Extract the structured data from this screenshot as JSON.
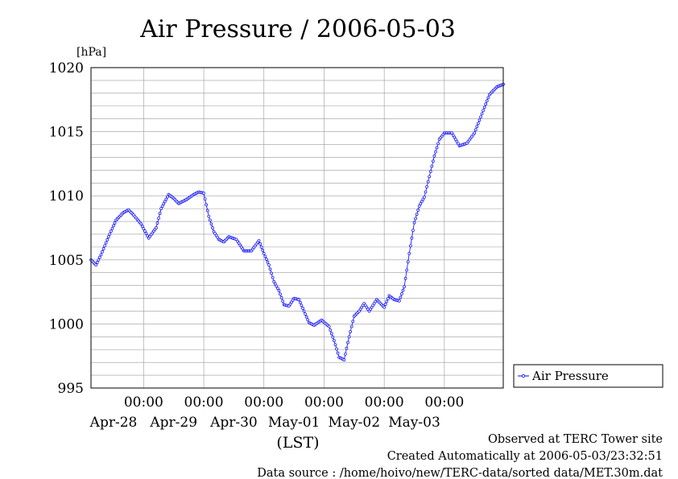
{
  "chart_data": {
    "type": "line",
    "title": "Air Pressure / 2006-05-03",
    "ylabel": "[hPa]",
    "xlabel": "(LST)",
    "ylim": [
      995,
      1020
    ],
    "yticks": [
      995,
      1000,
      1005,
      1010,
      1015,
      1020
    ],
    "xlim": [
      "2006-04-27 03:00",
      "2006-05-03 23:30"
    ],
    "xticks": [
      {
        "x": "2006-04-28 00:00",
        "time": "00:00",
        "date": "Apr-28"
      },
      {
        "x": "2006-04-29 00:00",
        "time": "00:00",
        "date": "Apr-29"
      },
      {
        "x": "2006-04-30 00:00",
        "time": "00:00",
        "date": "Apr-30"
      },
      {
        "x": "2006-05-01 00:00",
        "time": "00:00",
        "date": "May-01"
      },
      {
        "x": "2006-05-02 00:00",
        "time": "00:00",
        "date": "May-02"
      },
      {
        "x": "2006-05-03 00:00",
        "time": "00:00",
        "date": "May-03"
      }
    ],
    "grid": true,
    "legend_position": "right",
    "series": [
      {
        "name": "Air Pressure",
        "color": "#0000ff",
        "x": [
          "2006-04-27 03:00",
          "2006-04-27 05:00",
          "2006-04-27 07:00",
          "2006-04-27 10:00",
          "2006-04-27 13:00",
          "2006-04-27 16:00",
          "2006-04-27 18:00",
          "2006-04-27 20:00",
          "2006-04-27 23:00",
          "2006-04-28 02:00",
          "2006-04-28 05:00",
          "2006-04-28 07:00",
          "2006-04-28 10:00",
          "2006-04-28 12:00",
          "2006-04-28 14:00",
          "2006-04-28 17:00",
          "2006-04-28 20:00",
          "2006-04-28 22:00",
          "2006-04-29 00:00",
          "2006-04-29 02:00",
          "2006-04-29 04:00",
          "2006-04-29 06:00",
          "2006-04-29 08:00",
          "2006-04-29 10:00",
          "2006-04-29 13:00",
          "2006-04-29 16:00",
          "2006-04-29 19:00",
          "2006-04-29 22:00",
          "2006-04-30 00:00",
          "2006-04-30 02:00",
          "2006-04-30 04:00",
          "2006-04-30 06:00",
          "2006-04-30 08:00",
          "2006-04-30 10:00",
          "2006-04-30 12:00",
          "2006-04-30 14:00",
          "2006-04-30 16:00",
          "2006-04-30 18:00",
          "2006-04-30 20:00",
          "2006-04-30 23:00",
          "2006-05-01 02:00",
          "2006-05-01 04:00",
          "2006-05-01 06:00",
          "2006-05-01 08:00",
          "2006-05-01 10:00",
          "2006-05-01 12:00",
          "2006-05-01 14:00",
          "2006-05-01 16:00",
          "2006-05-01 18:00",
          "2006-05-01 21:00",
          "2006-05-02 00:00",
          "2006-05-02 02:00",
          "2006-05-02 04:00",
          "2006-05-02 06:00",
          "2006-05-02 08:00",
          "2006-05-02 10:00",
          "2006-05-02 12:00",
          "2006-05-02 14:00",
          "2006-05-02 16:00",
          "2006-05-02 18:00",
          "2006-05-02 20:00",
          "2006-05-02 22:00",
          "2006-05-03 00:00",
          "2006-05-03 03:00",
          "2006-05-03 06:00",
          "2006-05-03 09:00",
          "2006-05-03 12:00",
          "2006-05-03 15:00",
          "2006-05-03 18:00",
          "2006-05-03 21:00",
          "2006-05-03 23:30"
        ],
        "values": [
          1005.0,
          1004.6,
          1005.4,
          1006.8,
          1008.1,
          1008.7,
          1008.9,
          1008.5,
          1007.8,
          1006.7,
          1007.5,
          1009.0,
          1010.1,
          1009.8,
          1009.4,
          1009.7,
          1010.1,
          1010.3,
          1010.2,
          1008.4,
          1007.2,
          1006.6,
          1006.4,
          1006.8,
          1006.6,
          1005.7,
          1005.7,
          1006.5,
          1005.5,
          1004.6,
          1003.3,
          1002.6,
          1001.5,
          1001.4,
          1002.0,
          1001.9,
          1001.0,
          1000.1,
          999.9,
          1000.3,
          999.8,
          998.7,
          997.4,
          997.2,
          999.0,
          1000.6,
          1001.0,
          1001.6,
          1001.0,
          1001.9,
          1001.3,
          1002.2,
          1001.9,
          1001.8,
          1002.9,
          1005.5,
          1007.9,
          1009.2,
          1009.9,
          1011.5,
          1013.1,
          1014.4,
          1014.9,
          1014.9,
          1013.9,
          1014.1,
          1014.9,
          1016.4,
          1017.9,
          1018.5,
          1018.7
        ]
      }
    ]
  },
  "footer": {
    "line1": "Observed at TERC Tower site",
    "line2": "Created Automatically at 2006-05-03/23:32:51",
    "line3": "Data source : /home/hoivo/new/TERC-data/sorted  data/MET.30m.dat"
  }
}
